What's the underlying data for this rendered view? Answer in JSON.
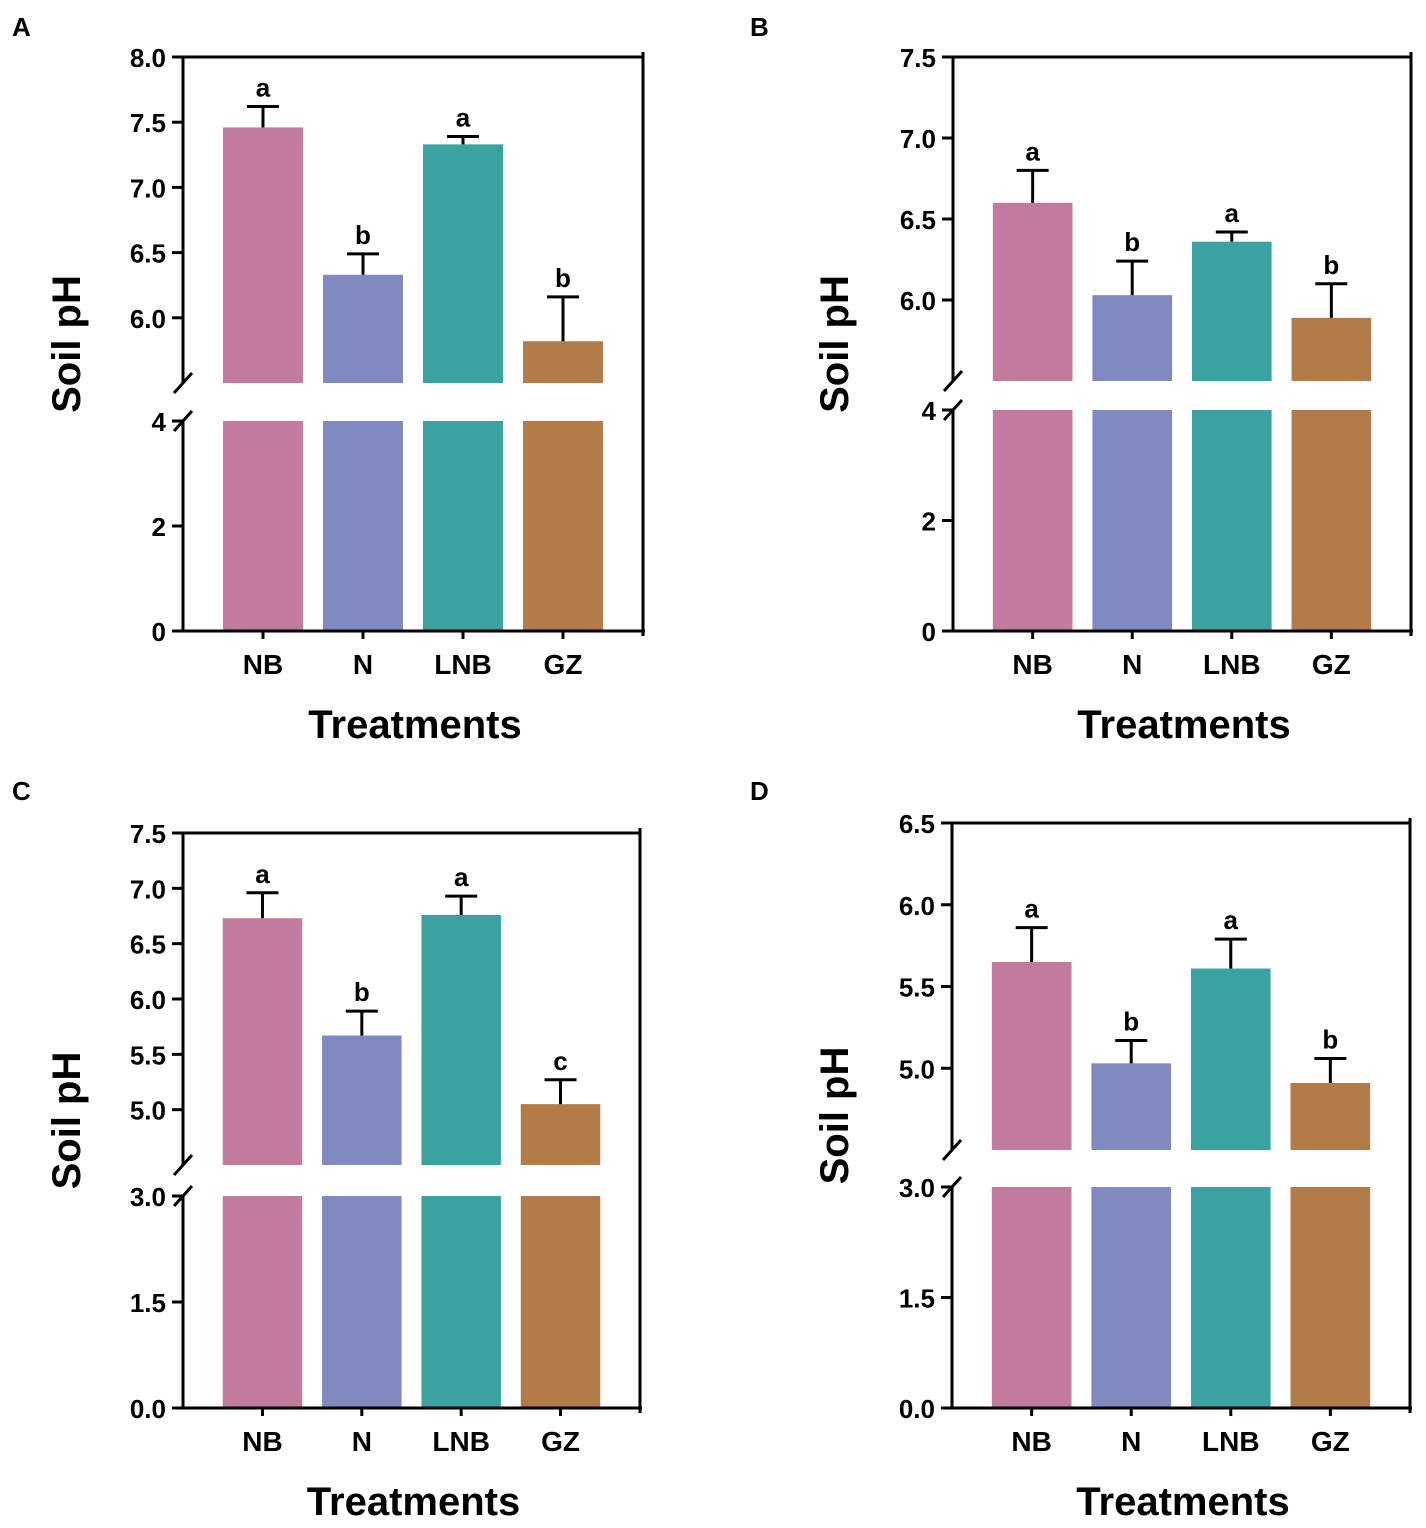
{
  "colors": {
    "NB": "#c27b9f",
    "N": "#8189c1",
    "LNB": "#3aa3a1",
    "GZ": "#b27b47",
    "axis": "#000000"
  },
  "chart_data": [
    {
      "panel": "A",
      "type": "bar",
      "categories": [
        "NB",
        "N",
        "LNB",
        "GZ"
      ],
      "values": [
        7.46,
        6.33,
        7.33,
        5.82
      ],
      "errors": [
        0.16,
        0.16,
        0.06,
        0.34
      ],
      "letters": [
        "a",
        "b",
        "a",
        "b"
      ],
      "xlabel": "Treatments",
      "ylabel": "Soil pH",
      "axis_break": true,
      "lower_range": [
        0,
        4
      ],
      "upper_range": [
        5.5,
        8.0
      ],
      "lower_ticks": [
        0,
        2,
        4
      ],
      "lower_tick_labels": [
        "0",
        "2",
        "4"
      ],
      "upper_ticks": [
        6.0,
        6.5,
        7.0,
        7.5,
        8.0
      ],
      "upper_tick_labels": [
        "6.0",
        "6.5",
        "7.0",
        "7.5",
        "8.0"
      ]
    },
    {
      "panel": "B",
      "type": "bar",
      "categories": [
        "NB",
        "N",
        "LNB",
        "GZ"
      ],
      "values": [
        6.6,
        6.03,
        6.36,
        5.89
      ],
      "errors": [
        0.2,
        0.21,
        0.06,
        0.21
      ],
      "letters": [
        "a",
        "b",
        "a",
        "b"
      ],
      "xlabel": "Treatments",
      "ylabel": "Soil pH",
      "axis_break": true,
      "lower_range": [
        0,
        4
      ],
      "upper_range": [
        5.5,
        7.5
      ],
      "lower_ticks": [
        0,
        2,
        4
      ],
      "lower_tick_labels": [
        "0",
        "2",
        "4"
      ],
      "upper_ticks": [
        6.0,
        6.5,
        7.0,
        7.5
      ],
      "upper_tick_labels": [
        "6.0",
        "6.5",
        "7.0",
        "7.5"
      ]
    },
    {
      "panel": "C",
      "type": "bar",
      "categories": [
        "NB",
        "N",
        "LNB",
        "GZ"
      ],
      "values": [
        6.73,
        5.67,
        6.76,
        5.05
      ],
      "errors": [
        0.23,
        0.22,
        0.17,
        0.22
      ],
      "letters": [
        "a",
        "b",
        "a",
        "c"
      ],
      "xlabel": "Treatments",
      "ylabel": "Soil pH",
      "axis_break": true,
      "lower_range": [
        0,
        3.0
      ],
      "upper_range": [
        4.5,
        7.5
      ],
      "lower_ticks": [
        0,
        1.5,
        3.0
      ],
      "lower_tick_labels": [
        "0.0",
        "1.5",
        "3.0"
      ],
      "upper_ticks": [
        5.0,
        5.5,
        6.0,
        6.5,
        7.0,
        7.5
      ],
      "upper_tick_labels": [
        "5.0",
        "5.5",
        "6.0",
        "6.5",
        "7.0",
        "7.5"
      ]
    },
    {
      "panel": "D",
      "type": "bar",
      "categories": [
        "NB",
        "N",
        "LNB",
        "GZ"
      ],
      "values": [
        5.65,
        5.03,
        5.61,
        4.91
      ],
      "errors": [
        0.21,
        0.14,
        0.18,
        0.15
      ],
      "letters": [
        "a",
        "b",
        "a",
        "b"
      ],
      "xlabel": "Treatments",
      "ylabel": "Soil pH",
      "axis_break": true,
      "lower_range": [
        0,
        3.0
      ],
      "upper_range": [
        4.5,
        6.5
      ],
      "lower_ticks": [
        0,
        1.5,
        3.0
      ],
      "lower_tick_labels": [
        "0.0",
        "1.5",
        "3.0"
      ],
      "upper_ticks": [
        5.0,
        5.5,
        6.0,
        6.5
      ],
      "upper_tick_labels": [
        "5.0",
        "5.5",
        "6.0",
        "6.5"
      ]
    }
  ]
}
